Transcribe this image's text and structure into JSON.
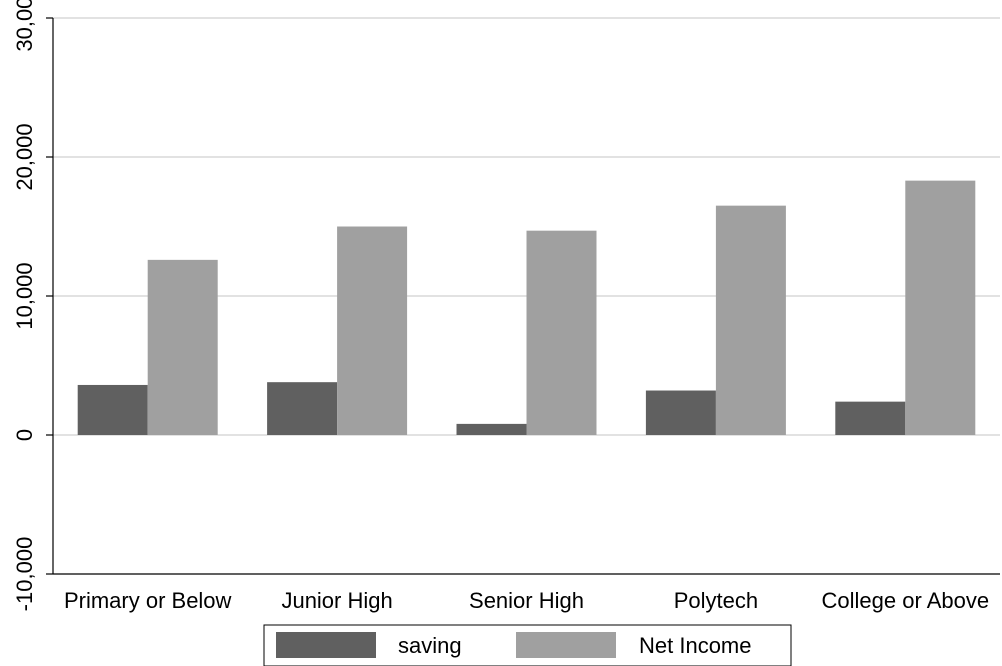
{
  "chart_data": {
    "type": "bar",
    "title": "",
    "xlabel": "",
    "ylabel": "",
    "categories": [
      "Primary or Below",
      "Junior High",
      "Senior High",
      "Polytech",
      "College or Above"
    ],
    "series": [
      {
        "name": "saving",
        "values": [
          3600,
          3800,
          800,
          3200,
          2400
        ],
        "color": "#606060"
      },
      {
        "name": "Net Income",
        "values": [
          12600,
          15000,
          14700,
          16500,
          18300
        ],
        "color": "#a0a0a0"
      }
    ],
    "ylim": [
      -10000,
      30000
    ],
    "yticks": [
      -10000,
      0,
      10000,
      20000,
      30000
    ],
    "ytick_labels": [
      "-10,000",
      "0",
      "10,000",
      "20,000",
      "30,000"
    ],
    "grid": true,
    "legend_position": "bottom"
  }
}
